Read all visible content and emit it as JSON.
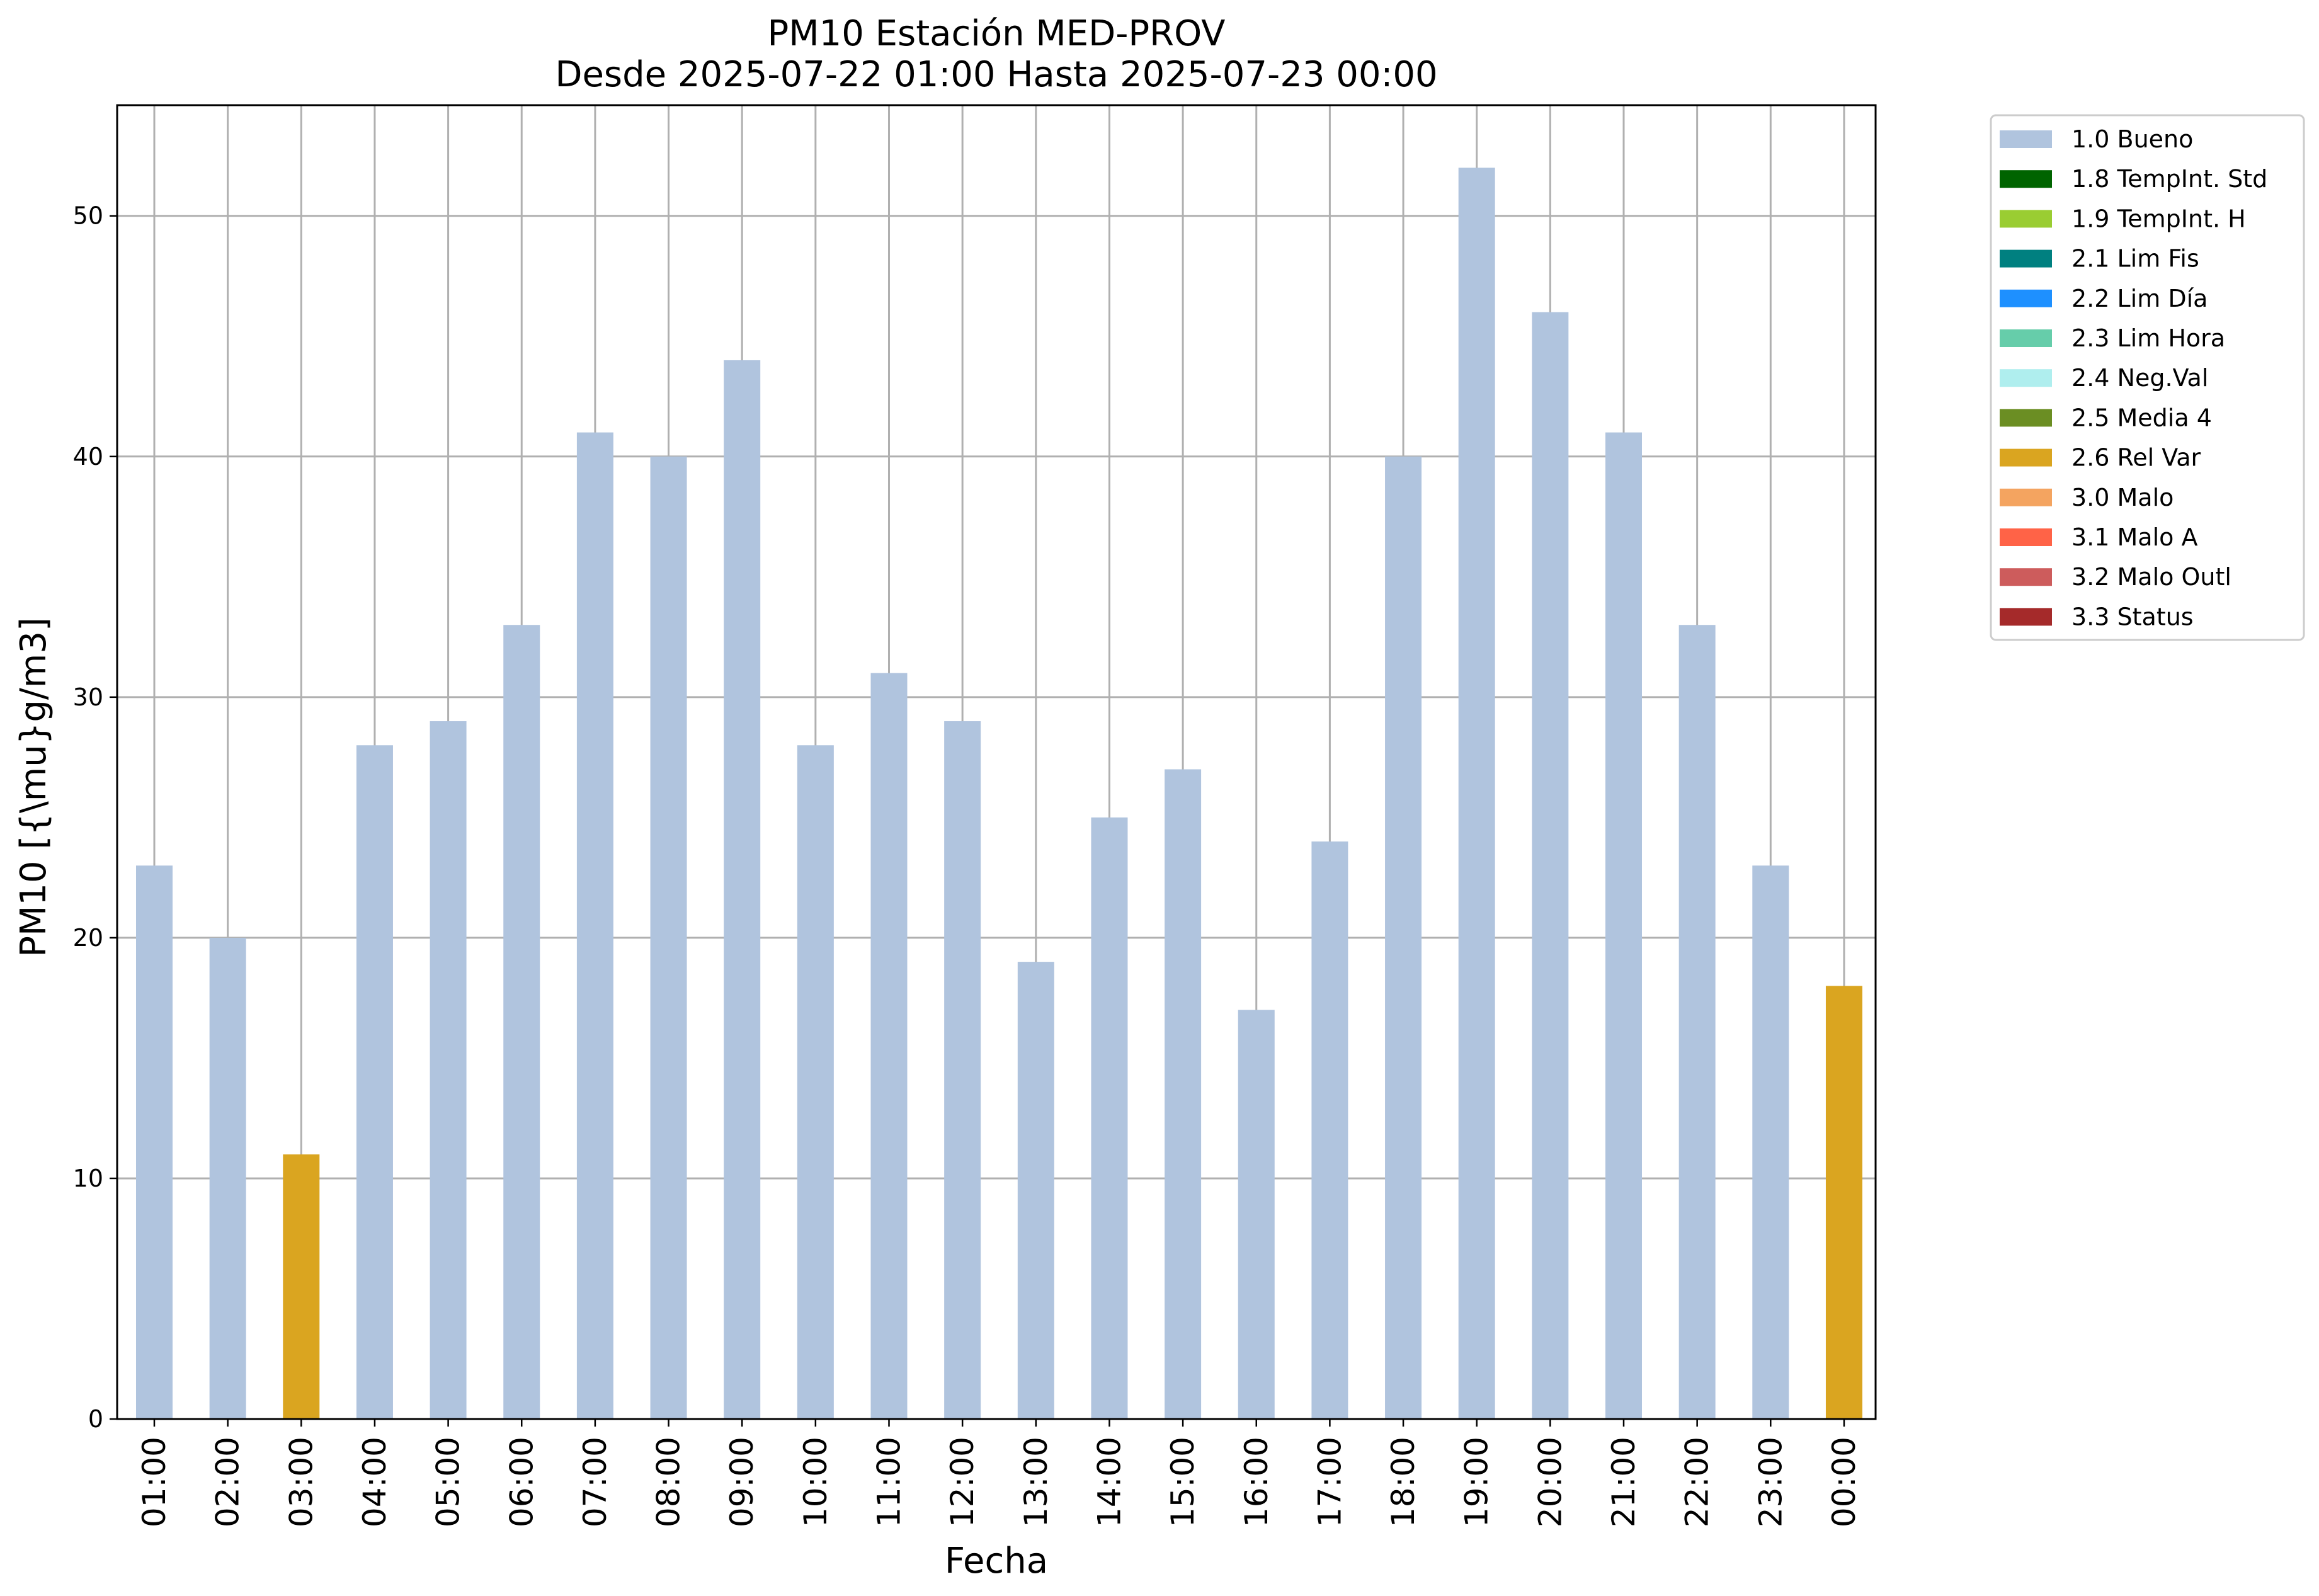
{
  "chart_data": {
    "type": "bar",
    "title": "PM10 Estación MED-PROV",
    "subtitle": "Desde 2025-07-22 01:00 Hasta 2025-07-23 00:00",
    "xlabel": "Fecha",
    "ylabel": "PM10 [{\\mu}g/m3]",
    "ylim": [
      0,
      54.6
    ],
    "yticks": [
      0,
      10,
      20,
      30,
      40,
      50
    ],
    "grid": true,
    "legend_position": "outside-right",
    "categories": [
      "01:00",
      "02:00",
      "03:00",
      "04:00",
      "05:00",
      "06:00",
      "07:00",
      "08:00",
      "09:00",
      "10:00",
      "11:00",
      "12:00",
      "13:00",
      "14:00",
      "15:00",
      "16:00",
      "17:00",
      "18:00",
      "19:00",
      "20:00",
      "21:00",
      "22:00",
      "23:00",
      "00:00"
    ],
    "values": [
      23,
      20,
      11,
      28,
      29,
      33,
      41,
      40,
      44,
      28,
      31,
      29,
      19,
      25,
      27,
      17,
      24,
      40,
      52,
      46,
      41,
      33,
      23,
      18
    ],
    "flags": [
      "1.0 Bueno",
      "1.0 Bueno",
      "2.6 Rel Var",
      "1.0 Bueno",
      "1.0 Bueno",
      "1.0 Bueno",
      "1.0 Bueno",
      "1.0 Bueno",
      "1.0 Bueno",
      "1.0 Bueno",
      "1.0 Bueno",
      "1.0 Bueno",
      "1.0 Bueno",
      "1.0 Bueno",
      "1.0 Bueno",
      "1.0 Bueno",
      "1.0 Bueno",
      "1.0 Bueno",
      "1.0 Bueno",
      "1.0 Bueno",
      "1.0 Bueno",
      "1.0 Bueno",
      "1.0 Bueno",
      "2.6 Rel Var"
    ],
    "legend": [
      {
        "label": "1.0 Bueno",
        "color": "#b0c4de"
      },
      {
        "label": "1.8 TempInt. Std",
        "color": "#006400"
      },
      {
        "label": "1.9 TempInt. H",
        "color": "#9acd32"
      },
      {
        "label": "2.1 Lim Fis",
        "color": "#008080"
      },
      {
        "label": "2.2 Lim Día",
        "color": "#1e90ff"
      },
      {
        "label": "2.3 Lim Hora",
        "color": "#66cdaa"
      },
      {
        "label": "2.4 Neg.Val",
        "color": "#afeeee"
      },
      {
        "label": "2.5 Media 4",
        "color": "#6b8e23"
      },
      {
        "label": "2.6 Rel Var",
        "color": "#daa520"
      },
      {
        "label": "3.0 Malo",
        "color": "#f4a460"
      },
      {
        "label": "3.1 Malo A",
        "color": "#ff6347"
      },
      {
        "label": "3.2 Malo Outl",
        "color": "#cd5c5c"
      },
      {
        "label": "3.3 Status",
        "color": "#a52a2a"
      }
    ]
  }
}
